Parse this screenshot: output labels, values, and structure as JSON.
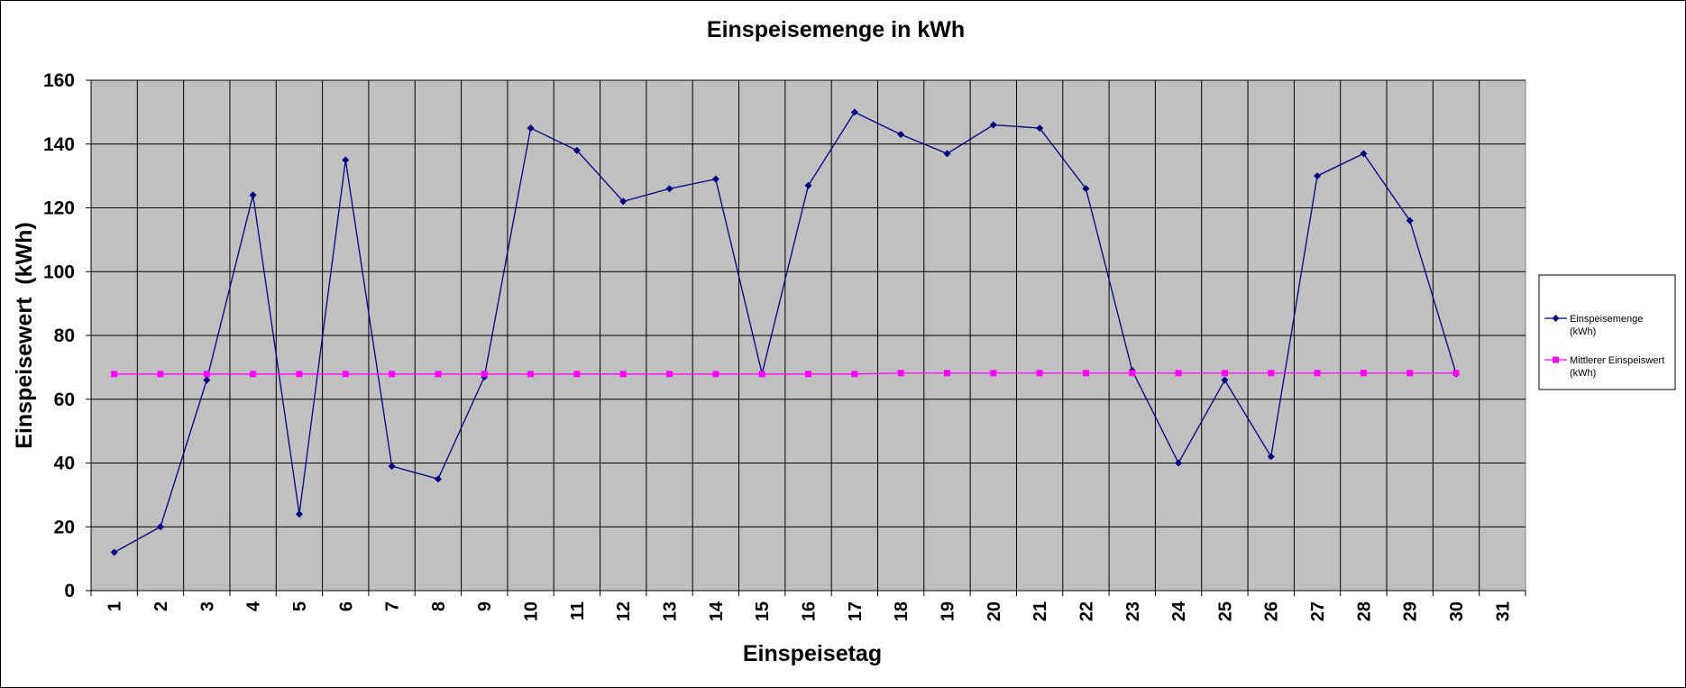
{
  "chart_data": {
    "type": "line",
    "title": "Einspeisemenge in kWh",
    "xlabel": "Einspeisetag",
    "ylabel": "Einspeisewert  (kWh)",
    "ylim": [
      0,
      160
    ],
    "yticks": [
      0,
      20,
      40,
      60,
      80,
      100,
      120,
      140,
      160
    ],
    "categories": [
      "1",
      "2",
      "3",
      "4",
      "5",
      "6",
      "7",
      "8",
      "9",
      "10",
      "11",
      "12",
      "13",
      "14",
      "15",
      "16",
      "17",
      "18",
      "19",
      "20",
      "21",
      "22",
      "23",
      "24",
      "25",
      "26",
      "27",
      "28",
      "29",
      "30",
      "31"
    ],
    "grid": true,
    "legend_position": "right",
    "plot_background": "#c0c0c0",
    "series": [
      {
        "name_lines": [
          "Einspeisemenge",
          "(kWh)"
        ],
        "color": "#000080",
        "marker": "diamond",
        "values": [
          12,
          20,
          66,
          124,
          24,
          135,
          39,
          35,
          67,
          145,
          138,
          122,
          126,
          129,
          68,
          127,
          150,
          143,
          137,
          146,
          145,
          126,
          69,
          40,
          66,
          42,
          130,
          137,
          116,
          68,
          null
        ]
      },
      {
        "name_lines": [
          "Mittlerer Einspeiswert",
          "(kWh)"
        ],
        "color": "#ff00ff",
        "marker": "square",
        "values": [
          67.9,
          67.9,
          67.9,
          67.9,
          67.9,
          67.9,
          67.9,
          67.9,
          67.9,
          67.9,
          67.9,
          67.9,
          67.9,
          67.9,
          67.9,
          67.9,
          67.9,
          68.2,
          68.2,
          68.2,
          68.2,
          68.2,
          68.2,
          68.2,
          68.2,
          68.2,
          68.2,
          68.2,
          68.2,
          68.2,
          null
        ]
      }
    ]
  }
}
